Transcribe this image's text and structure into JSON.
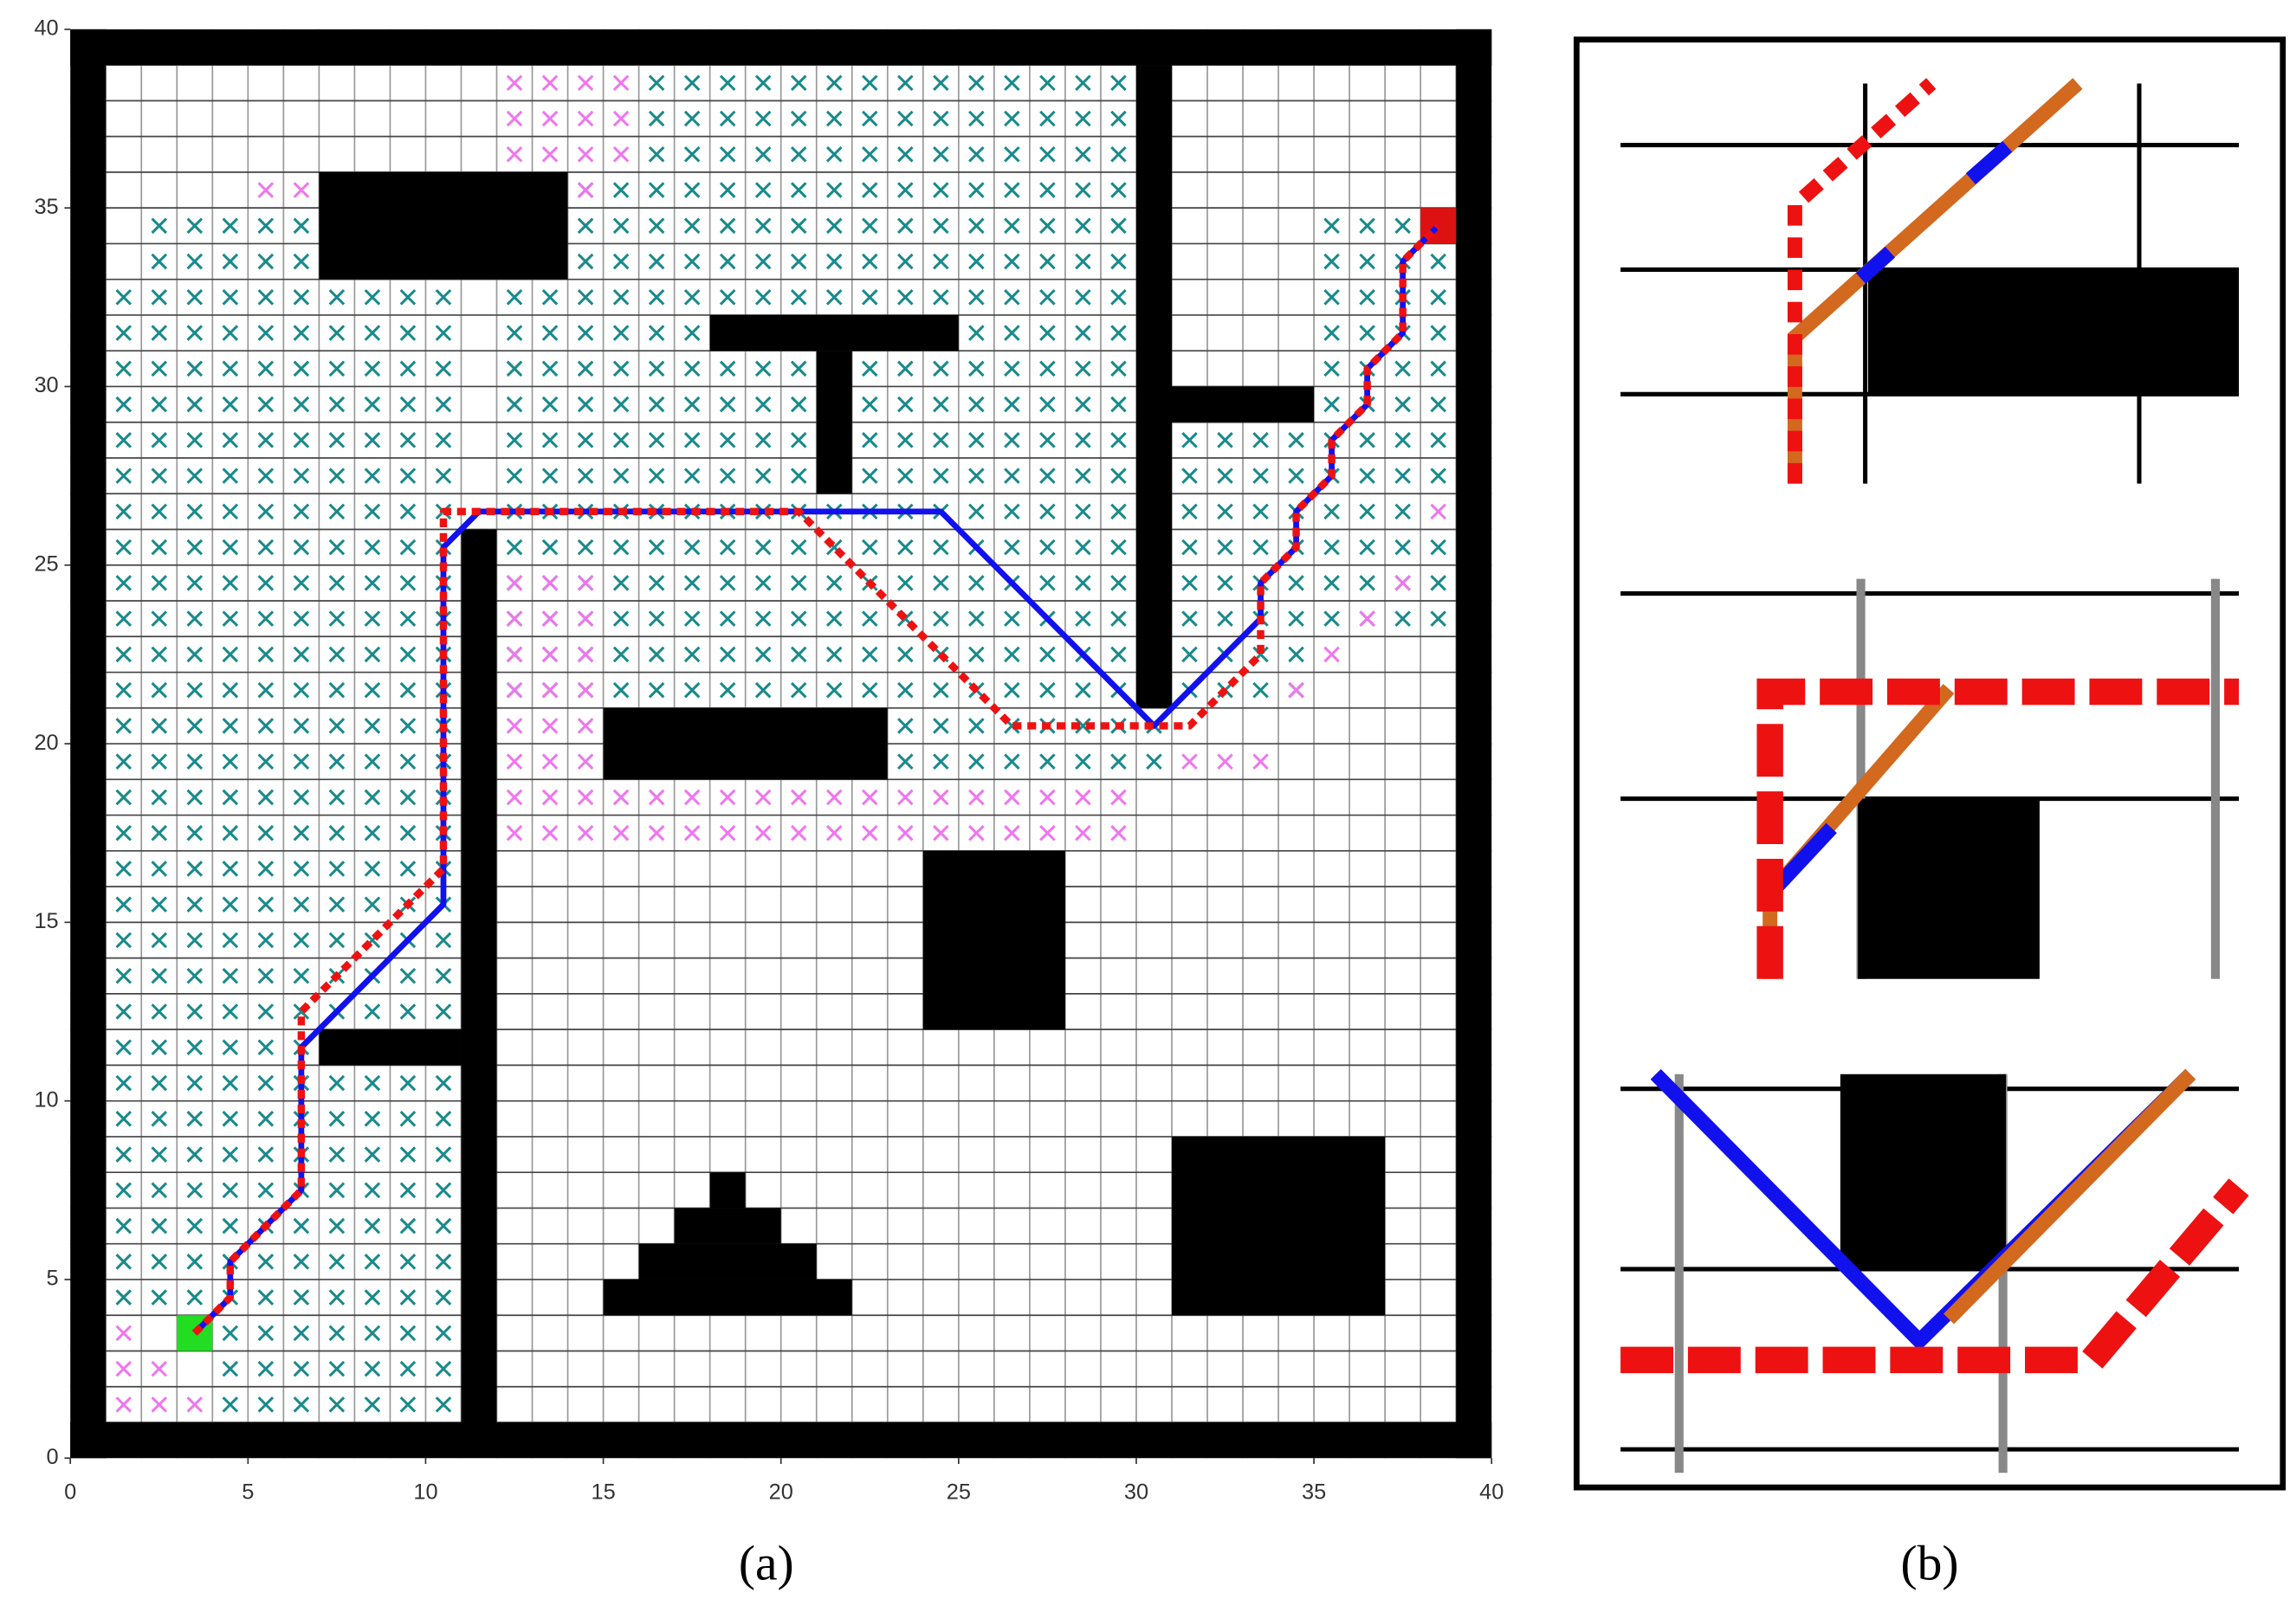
{
  "chart_data": {
    "type": "gridmap",
    "xlim": [
      0,
      40
    ],
    "ylim": [
      0,
      40
    ],
    "xticks": [
      0,
      5,
      10,
      15,
      20,
      25,
      30,
      35,
      40
    ],
    "yticks": [
      0,
      5,
      10,
      15,
      20,
      25,
      30,
      35,
      40
    ],
    "grid": true,
    "panel_labels": [
      "(a)",
      "(b)"
    ],
    "obstacle_color": "#000000",
    "obstacles": [
      [
        0,
        0,
        40,
        1
      ],
      [
        0,
        39,
        40,
        40
      ],
      [
        0,
        0,
        1,
        40
      ],
      [
        39,
        0,
        40,
        40
      ],
      [
        7,
        33,
        14,
        36
      ],
      [
        18,
        31,
        25,
        32
      ],
      [
        21,
        27,
        22,
        31
      ],
      [
        30,
        21,
        31,
        39
      ],
      [
        31,
        29,
        35,
        30
      ],
      [
        11,
        1,
        12,
        26
      ],
      [
        7,
        11,
        11,
        12
      ],
      [
        15,
        19,
        23,
        21
      ],
      [
        24,
        12,
        28,
        17
      ],
      [
        31,
        4,
        37,
        9
      ],
      [
        15,
        4,
        22,
        5
      ],
      [
        16,
        5,
        21,
        6
      ],
      [
        17,
        6,
        20,
        7
      ],
      [
        18,
        7,
        19,
        8
      ]
    ],
    "start": {
      "cell": [
        3,
        3
      ],
      "color": "#22dd22"
    },
    "goal": {
      "cell": [
        38,
        34
      ],
      "color": "#dd1111"
    },
    "explored": [
      {
        "color": "#1a8a8a",
        "cells": [
          [
            1,
            4,
            11,
            33
          ],
          [
            4,
            1,
            11,
            4
          ],
          [
            2,
            33,
            7,
            35
          ],
          [
            14,
            33,
            30,
            36
          ],
          [
            16,
            36,
            30,
            39
          ],
          [
            12,
            21,
            30,
            33
          ],
          [
            23,
            19,
            31,
            21
          ],
          [
            31,
            21,
            35,
            29
          ],
          [
            35,
            23,
            39,
            26
          ],
          [
            35,
            26,
            38,
            35
          ],
          [
            38,
            27,
            39,
            34
          ]
        ]
      },
      {
        "color": "#ee77ee",
        "cells": [
          [
            1,
            1,
            2,
            4
          ],
          [
            2,
            1,
            3,
            3
          ],
          [
            3,
            1,
            4,
            2
          ],
          [
            5,
            35,
            7,
            36
          ],
          [
            12,
            36,
            16,
            39
          ],
          [
            14,
            35,
            15,
            36
          ],
          [
            12,
            17,
            30,
            19
          ],
          [
            12,
            19,
            15,
            25
          ],
          [
            31,
            19,
            34,
            20
          ],
          [
            34,
            21,
            35,
            22
          ],
          [
            35,
            22,
            36,
            23
          ],
          [
            36,
            23,
            37,
            24
          ],
          [
            37,
            24,
            38,
            25
          ],
          [
            38,
            26,
            39,
            27
          ]
        ]
      }
    ],
    "series": [
      {
        "color": "#1111ee",
        "style": "solid",
        "x": [
          3.5,
          4.5,
          4.5,
          6.5,
          6.5,
          10.5,
          10.5,
          11.5,
          24.5,
          30.5,
          33.5,
          33.5,
          34.5,
          34.5,
          35.5,
          35.5,
          36.5,
          36.5,
          37.5,
          37.5,
          38.5
        ],
        "y": [
          3.5,
          4.5,
          5.5,
          7.5,
          11.5,
          15.5,
          25.5,
          26.5,
          26.5,
          20.5,
          23.5,
          24.5,
          25.5,
          26.5,
          27.5,
          28.5,
          29.5,
          30.5,
          31.5,
          33.5,
          34.5
        ]
      },
      {
        "color": "#ee1111",
        "style": "dotted",
        "x": [
          3.5,
          4.5,
          4.5,
          6.5,
          6.5,
          6.5,
          10.5,
          10.5,
          20.5,
          26.5,
          31.5,
          33.5,
          33.5,
          34.5,
          34.5,
          35.5,
          35.5,
          36.5,
          36.5,
          37.5,
          37.5,
          38.5
        ],
        "y": [
          3.5,
          4.5,
          5.5,
          7.5,
          11.5,
          12.5,
          16.5,
          26.5,
          26.5,
          20.5,
          20.5,
          22.5,
          24.5,
          25.5,
          26.5,
          27.5,
          28.5,
          29.5,
          30.5,
          31.5,
          33.5,
          34.5
        ]
      }
    ]
  }
}
